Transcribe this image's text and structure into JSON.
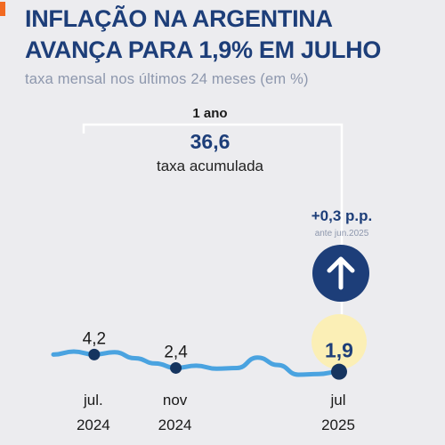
{
  "header": {
    "title_line1": "INFLAÇÃO NA ARGENTINA",
    "title_line2": "AVANÇA PARA 1,9% EM JULHO",
    "subtitle": "taxa mensal nos últimos 24 meses (em %)"
  },
  "bracket": {
    "label": "1 ano",
    "value": "36,6",
    "caption": "taxa acumulada"
  },
  "change": {
    "value": "+0,3 p.p.",
    "reference": "ante jun.2025",
    "direction": "up"
  },
  "colors": {
    "title": "#1d3e79",
    "line": "#4aa3e0",
    "point": "#15345f",
    "highlight": "#fbefb6",
    "accent": "#f26a21"
  },
  "chart_data": {
    "type": "line",
    "x": [
      "mai.2024",
      "jun.2024",
      "jul.2024",
      "ago.2024",
      "set.2024",
      "out.2024",
      "nov.2024",
      "dez.2024",
      "jan.2025",
      "fev.2025",
      "mar.2025",
      "abr.2025",
      "mai.2025",
      "jun.2025",
      "jul.2025"
    ],
    "values": [
      4.2,
      4.6,
      4.2,
      4.5,
      3.7,
      3.0,
      2.4,
      2.7,
      2.3,
      2.4,
      3.8,
      2.8,
      1.5,
      1.6,
      1.9
    ],
    "highlighted_points": [
      {
        "x": "jul.2024",
        "label": "4,2"
      },
      {
        "x": "nov.2024",
        "label": "2,4"
      },
      {
        "x": "jul.2025",
        "label": "1,9"
      }
    ],
    "x_tick_labels": [
      {
        "x": "jul.2024",
        "line1": "jul.",
        "line2": "2024"
      },
      {
        "x": "nov.2024",
        "line1": "nov",
        "line2": "2024"
      },
      {
        "x": "jul.2025",
        "line1": "jul",
        "line2": "2025"
      }
    ],
    "title": "",
    "xlabel": "",
    "ylabel": "",
    "grid": false
  }
}
